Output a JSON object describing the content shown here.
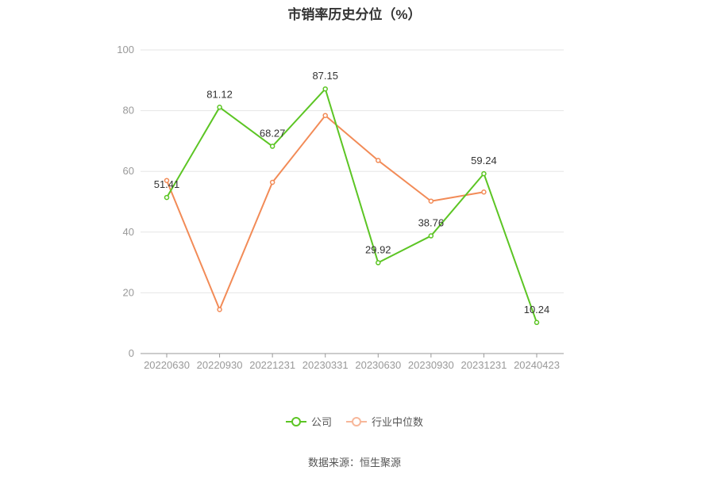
{
  "chart_data": {
    "type": "line",
    "title": "市销率历史分位（%）",
    "categories": [
      "20220630",
      "20220930",
      "20221231",
      "20230331",
      "20230630",
      "20230930",
      "20231231",
      "20240423"
    ],
    "ylim": [
      0,
      100
    ],
    "yticks": [
      0,
      20,
      40,
      60,
      80,
      100
    ],
    "grid": true,
    "legend_position": "bottom",
    "series": [
      {
        "name": "公司",
        "color": "#5cc524",
        "values": [
          51.41,
          81.12,
          68.27,
          87.15,
          29.92,
          38.76,
          59.24,
          10.24
        ],
        "labels": [
          "51.41",
          "81.12",
          "68.27",
          "87.15",
          "29.92",
          "38.76",
          "59.24",
          "10.24"
        ]
      },
      {
        "name": "行业中位数",
        "color": "#f28b57",
        "legend_color": "#f7b79a",
        "values": [
          57.0,
          14.5,
          56.4,
          78.4,
          63.6,
          50.2,
          53.2,
          null
        ]
      }
    ]
  },
  "source": "数据来源：恒生聚源"
}
